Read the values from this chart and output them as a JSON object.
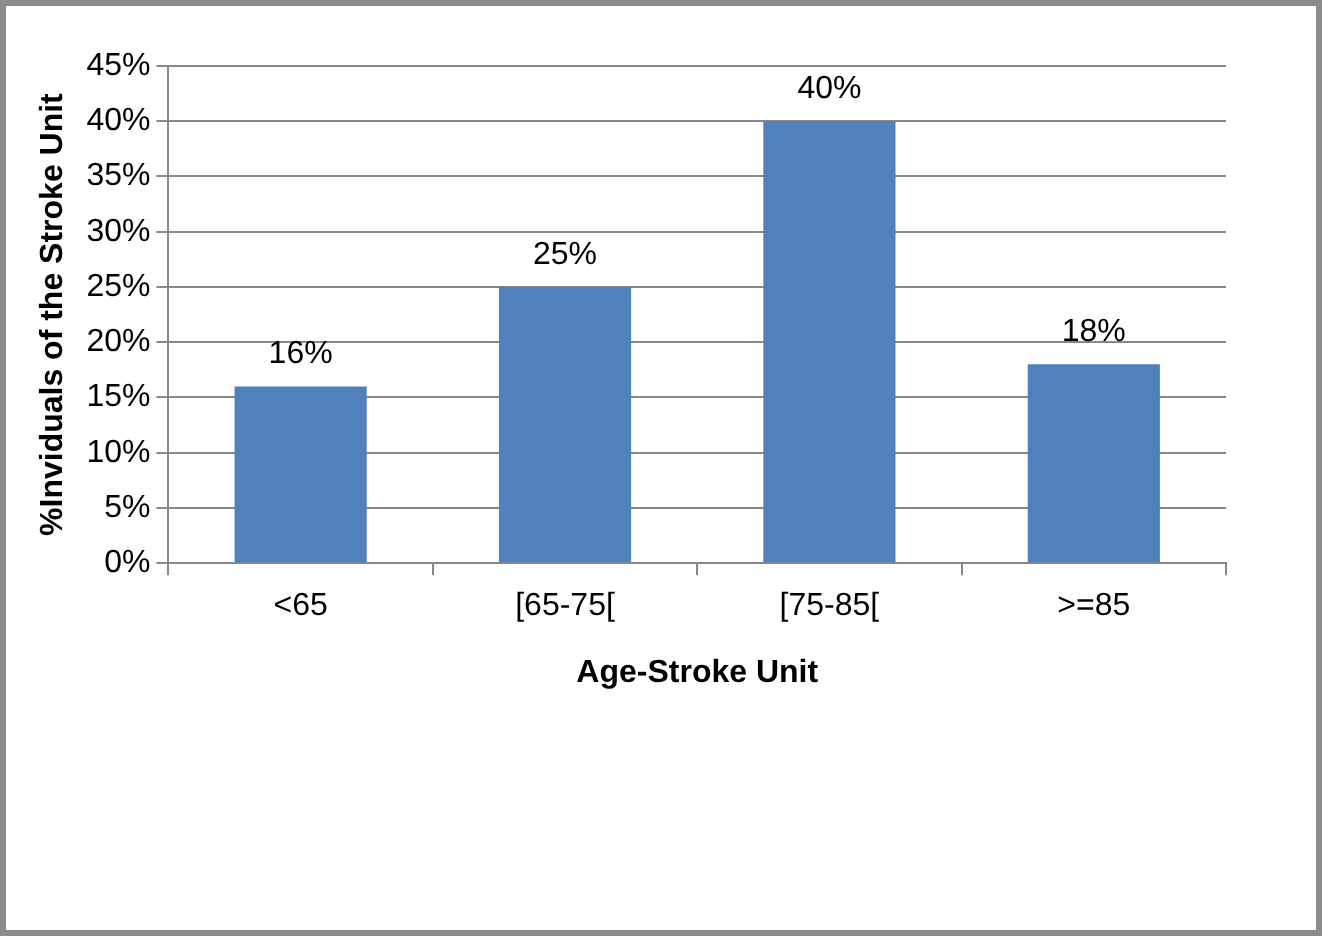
{
  "chart_data": {
    "type": "bar",
    "xlabel": "Age-Stroke Unit",
    "ylabel": "%Inviduals of the Stroke Unit",
    "categories": [
      "<65",
      "[65-75[",
      "[75-85[",
      ">=85"
    ],
    "values": [
      16,
      25,
      40,
      18
    ],
    "value_labels": [
      "16%",
      "25%",
      "40%",
      "18%"
    ],
    "color": "#4f81bd",
    "ylim": [
      0,
      45
    ],
    "yticks": [
      {
        "value": 0,
        "label": "0%"
      },
      {
        "value": 5,
        "label": "5%"
      },
      {
        "value": 10,
        "label": "10%"
      },
      {
        "value": 15,
        "label": "15%"
      },
      {
        "value": 20,
        "label": "20%"
      },
      {
        "value": 25,
        "label": "25%"
      },
      {
        "value": 30,
        "label": "30%"
      },
      {
        "value": 35,
        "label": "35%"
      },
      {
        "value": 40,
        "label": "40%"
      },
      {
        "value": 45,
        "label": "45%"
      }
    ],
    "grid": "y",
    "legend": false
  }
}
